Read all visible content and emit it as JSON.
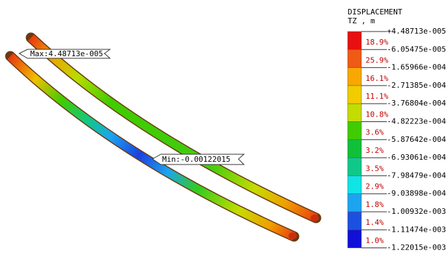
{
  "annotations": {
    "max": "Max:4.48713e-005",
    "min": "Min:-0.00122015"
  },
  "legend": {
    "title": "DISPLACEMENT",
    "subtitle": "TZ , m",
    "levels": [
      "+4.48713e-005",
      "-6.05475e-005",
      "-1.65966e-004",
      "-2.71385e-004",
      "-3.76804e-004",
      "-4.82223e-004",
      "-5.87642e-004",
      "-6.93061e-004",
      "-7.98479e-004",
      "-9.03898e-004",
      "-1.00932e-003",
      "-1.11474e-003",
      "-1.22015e-003"
    ],
    "percents": [
      "18.9%",
      "25.9%",
      "16.1%",
      "11.1%",
      "10.8%",
      "3.6%",
      "3.2%",
      "3.5%",
      "2.9%",
      "1.8%",
      "1.4%",
      "1.0%"
    ],
    "colors": [
      "#e81010",
      "#f05a14",
      "#f8a800",
      "#f0cc00",
      "#c4dc00",
      "#40cc00",
      "#10c038",
      "#10c888",
      "#10e4e4",
      "#1ca4f0",
      "#1c50e0",
      "#1010d8"
    ]
  }
}
